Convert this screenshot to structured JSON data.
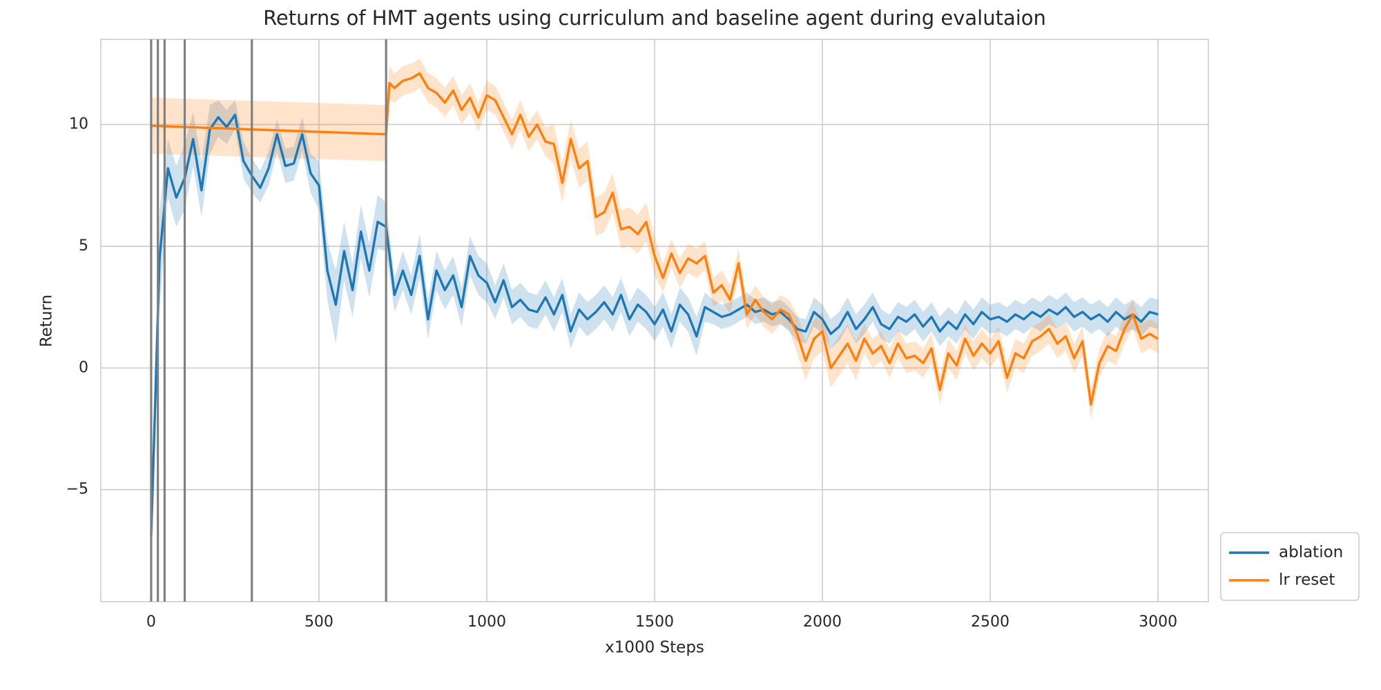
{
  "chart_data": {
    "type": "line",
    "title": "Returns of HMT agents using curriculum and baseline agent during evalutaion",
    "x_label": "x1000 Steps",
    "y_label": "Return",
    "xlim": [
      -150,
      3150
    ],
    "ylim": [
      -9.6,
      13.5
    ],
    "xticks": [
      0,
      500,
      1000,
      1500,
      2000,
      2500,
      3000
    ],
    "yticks": [
      {
        "value": -5,
        "label": "−5"
      },
      0,
      5,
      10
    ],
    "grid": true,
    "legend": "outside lower right",
    "vlines": [
      0,
      20,
      40,
      100,
      300,
      700
    ],
    "vline_color": "#808080",
    "series": [
      {
        "name": "ablation",
        "color": "#1f77b4",
        "x": [
          0,
          25,
          50,
          75,
          100,
          125,
          150,
          175,
          200,
          225,
          250,
          275,
          300,
          325,
          350,
          375,
          400,
          425,
          450,
          475,
          500,
          525,
          550,
          575,
          600,
          625,
          650,
          675,
          700,
          725,
          750,
          775,
          800,
          825,
          850,
          875,
          900,
          925,
          950,
          975,
          1000,
          1025,
          1050,
          1075,
          1100,
          1125,
          1150,
          1175,
          1200,
          1225,
          1250,
          1275,
          1300,
          1325,
          1350,
          1375,
          1400,
          1425,
          1450,
          1475,
          1500,
          1525,
          1550,
          1575,
          1600,
          1625,
          1650,
          1675,
          1700,
          1725,
          1750,
          1775,
          1800,
          1825,
          1850,
          1875,
          1900,
          1925,
          1950,
          1975,
          2000,
          2025,
          2050,
          2075,
          2100,
          2125,
          2150,
          2175,
          2200,
          2225,
          2250,
          2275,
          2300,
          2325,
          2350,
          2375,
          2400,
          2425,
          2450,
          2475,
          2500,
          2525,
          2550,
          2575,
          2600,
          2625,
          2650,
          2675,
          2700,
          2725,
          2750,
          2775,
          2800,
          2825,
          2850,
          2875,
          2900,
          2925,
          2950,
          2975,
          3000
        ],
        "values": [
          -6.9,
          4.5,
          8.2,
          7.0,
          7.8,
          9.4,
          7.3,
          9.8,
          10.3,
          9.9,
          10.4,
          8.5,
          7.9,
          7.4,
          8.2,
          9.6,
          8.3,
          8.4,
          9.6,
          8.0,
          7.5,
          4.0,
          2.6,
          4.8,
          3.2,
          5.6,
          4.0,
          6.0,
          5.8,
          3.0,
          4.0,
          3.0,
          4.6,
          2.0,
          4.0,
          3.2,
          3.8,
          2.5,
          4.6,
          3.8,
          3.5,
          2.7,
          3.6,
          2.5,
          2.8,
          2.4,
          2.3,
          2.9,
          2.2,
          3.0,
          1.5,
          2.4,
          2.0,
          2.3,
          2.7,
          2.2,
          3.0,
          2.0,
          2.6,
          2.3,
          1.8,
          2.4,
          1.5,
          2.6,
          2.2,
          1.3,
          2.5,
          2.3,
          2.1,
          2.2,
          2.4,
          2.6,
          2.3,
          2.4,
          2.2,
          2.3,
          2.0,
          1.6,
          1.5,
          2.3,
          2.0,
          1.4,
          1.7,
          2.3,
          1.6,
          2.0,
          2.5,
          1.8,
          1.6,
          2.1,
          1.9,
          2.2,
          1.7,
          2.1,
          1.5,
          1.9,
          1.6,
          2.2,
          1.8,
          2.3,
          2.0,
          2.1,
          1.9,
          2.2,
          2.0,
          2.3,
          2.1,
          2.4,
          2.2,
          2.5,
          2.1,
          2.3,
          2.0,
          2.2,
          1.9,
          2.3,
          2.0,
          2.2,
          1.9,
          2.3,
          2.2
        ],
        "lower": [
          -8.5,
          2.5,
          7,
          5.8,
          6.5,
          8.3,
          6.2,
          8.8,
          9.5,
          9.2,
          9.8,
          7.8,
          7.2,
          6.8,
          7.5,
          8.9,
          7.6,
          7.7,
          8.9,
          7.2,
          6.5,
          2.8,
          1,
          3.6,
          2.1,
          4.5,
          2.9,
          4.9,
          4.8,
          2.3,
          3.2,
          2.2,
          3.7,
          1.2,
          3.2,
          2.4,
          3,
          1.7,
          3.8,
          3,
          2.7,
          2,
          2.9,
          1.8,
          2.1,
          1.7,
          1.6,
          2.2,
          1.5,
          2.3,
          0.8,
          1.7,
          1.3,
          1.6,
          2,
          1.5,
          2.3,
          1.3,
          1.9,
          1.6,
          1.1,
          1.7,
          0.8,
          1.9,
          1.5,
          0.5,
          1.9,
          1.8,
          1.6,
          1.7,
          1.9,
          2.1,
          1.8,
          1.9,
          1.7,
          1.8,
          1.5,
          1.1,
          1,
          1.7,
          1.4,
          0.8,
          1.1,
          1.7,
          1,
          1.4,
          1.9,
          1.2,
          1,
          1.5,
          1.3,
          1.6,
          1.1,
          1.5,
          0.9,
          1.3,
          1,
          1.6,
          1.2,
          1.7,
          1.4,
          1.5,
          1.3,
          1.6,
          1.4,
          1.7,
          1.5,
          1.8,
          1.6,
          1.9,
          1.5,
          1.7,
          1.4,
          1.6,
          1.3,
          1.7,
          1.4,
          1.6,
          1.3,
          1.7,
          1.6
        ],
        "upper": [
          -5.5,
          6.5,
          9.4,
          8.3,
          9.2,
          10.5,
          8.5,
          10.8,
          11,
          10.6,
          11,
          9.3,
          8.6,
          8.1,
          8.9,
          10.2,
          9,
          9.1,
          10.3,
          8.8,
          8.5,
          5.2,
          4,
          6,
          4.3,
          6.7,
          5.1,
          7.1,
          6.8,
          3.7,
          4.8,
          3.8,
          5.5,
          2.8,
          4.8,
          4,
          4.6,
          3.3,
          5.4,
          4.6,
          4.3,
          3.4,
          4.3,
          3.2,
          3.5,
          3.1,
          3,
          3.6,
          2.9,
          3.7,
          2.2,
          3.1,
          2.7,
          3,
          3.4,
          2.9,
          3.7,
          2.7,
          3.3,
          3,
          2.5,
          3.1,
          2.2,
          3.3,
          2.9,
          2.1,
          3.1,
          2.8,
          2.6,
          2.7,
          2.9,
          3.1,
          2.8,
          2.9,
          2.7,
          2.8,
          2.5,
          2.1,
          2,
          2.9,
          2.6,
          2,
          2.3,
          2.9,
          2.2,
          2.6,
          3.1,
          2.4,
          2.2,
          2.7,
          2.5,
          2.8,
          2.3,
          2.7,
          2.1,
          2.5,
          2.2,
          2.8,
          2.4,
          2.9,
          2.6,
          2.7,
          2.5,
          2.8,
          2.6,
          2.9,
          2.7,
          3,
          2.8,
          3.1,
          2.7,
          2.9,
          2.6,
          2.8,
          2.5,
          2.9,
          2.6,
          2.8,
          2.5,
          2.9,
          2.8
        ]
      },
      {
        "name": "lr reset",
        "color": "#ff7f0e",
        "x": [
          0,
          700,
          710,
          725,
          750,
          775,
          800,
          825,
          850,
          875,
          900,
          925,
          950,
          975,
          1000,
          1025,
          1050,
          1075,
          1100,
          1125,
          1150,
          1175,
          1200,
          1225,
          1250,
          1275,
          1300,
          1325,
          1350,
          1375,
          1400,
          1425,
          1450,
          1475,
          1500,
          1525,
          1550,
          1575,
          1600,
          1625,
          1650,
          1675,
          1700,
          1725,
          1750,
          1775,
          1800,
          1825,
          1850,
          1875,
          1900,
          1925,
          1950,
          1975,
          2000,
          2025,
          2050,
          2075,
          2100,
          2125,
          2150,
          2175,
          2200,
          2225,
          2250,
          2275,
          2300,
          2325,
          2350,
          2375,
          2400,
          2425,
          2450,
          2475,
          2500,
          2525,
          2550,
          2575,
          2600,
          2625,
          2650,
          2675,
          2700,
          2725,
          2750,
          2775,
          2800,
          2825,
          2850,
          2875,
          2900,
          2925,
          2950,
          2975,
          3000
        ],
        "values": [
          9.95,
          9.6,
          11.7,
          11.5,
          11.8,
          11.9,
          12.1,
          11.5,
          11.3,
          10.9,
          11.4,
          10.6,
          11.1,
          10.3,
          11.2,
          11.0,
          10.3,
          9.6,
          10.4,
          9.5,
          10.0,
          9.3,
          9.2,
          7.6,
          9.4,
          8.2,
          8.5,
          6.2,
          6.4,
          7.2,
          5.7,
          5.8,
          5.5,
          6.0,
          4.6,
          3.7,
          4.7,
          3.9,
          4.5,
          4.3,
          4.6,
          3.1,
          3.4,
          2.8,
          4.3,
          2.2,
          2.8,
          2.3,
          2.0,
          2.4,
          2.2,
          1.4,
          0.3,
          1.2,
          1.5,
          0.0,
          0.5,
          1.0,
          0.3,
          1.2,
          0.6,
          0.9,
          0.2,
          1.0,
          0.4,
          0.5,
          0.2,
          0.8,
          -0.9,
          0.6,
          0.1,
          1.2,
          0.5,
          1.0,
          0.6,
          1.1,
          -0.4,
          0.6,
          0.4,
          1.1,
          1.3,
          1.6,
          1.0,
          1.3,
          0.4,
          1.1,
          -1.5,
          0.2,
          0.9,
          0.7,
          1.6,
          2.2,
          1.2,
          1.4,
          1.2
        ],
        "lower": [
          8.8,
          8.5,
          11.0,
          10.9,
          11.2,
          11.3,
          11.5,
          10.9,
          10.7,
          10.3,
          10.8,
          10.0,
          10.5,
          9.7,
          10.6,
          10.4,
          9.7,
          9.0,
          9.8,
          8.9,
          9.4,
          8.7,
          8.4,
          6.8,
          8.6,
          7.4,
          7.7,
          5.4,
          5.6,
          6.4,
          4.9,
          5.0,
          4.7,
          5.2,
          3.8,
          3.1,
          4.1,
          3.3,
          3.9,
          3.7,
          4.0,
          2.5,
          2.8,
          2.2,
          3.7,
          1.6,
          2.2,
          1.7,
          1.4,
          1.8,
          1.6,
          0.6,
          -0.5,
          0.4,
          0.7,
          -0.8,
          -0.3,
          0.2,
          -0.5,
          0.6,
          0.0,
          0.3,
          -0.4,
          0.4,
          -0.2,
          -0.1,
          -0.4,
          0.2,
          -1.5,
          0.0,
          -0.5,
          0.6,
          -0.1,
          0.4,
          0.0,
          0.5,
          -1.0,
          0.0,
          -0.2,
          0.5,
          0.7,
          1.0,
          0.4,
          0.7,
          -0.2,
          0.5,
          -2.1,
          -0.4,
          0.3,
          0.1,
          1.0,
          1.6,
          0.6,
          0.8,
          0.6
        ],
        "upper": [
          11.1,
          10.8,
          12.4,
          12.1,
          12.4,
          12.5,
          12.7,
          12.1,
          11.9,
          11.5,
          12.0,
          11.2,
          11.7,
          10.9,
          11.8,
          11.6,
          10.9,
          10.2,
          11.0,
          10.1,
          10.6,
          9.9,
          10.0,
          8.4,
          10.2,
          9.0,
          9.3,
          7.0,
          7.2,
          8.0,
          6.5,
          6.6,
          6.3,
          6.8,
          5.4,
          4.3,
          5.3,
          4.5,
          5.1,
          4.9,
          5.2,
          3.7,
          4.0,
          3.4,
          4.9,
          2.8,
          3.4,
          2.9,
          2.6,
          3.0,
          2.8,
          2.2,
          1.1,
          2.0,
          2.3,
          0.8,
          1.3,
          1.8,
          1.1,
          1.8,
          1.2,
          1.5,
          0.8,
          1.6,
          1.0,
          1.1,
          0.8,
          1.4,
          -0.3,
          1.2,
          0.7,
          1.8,
          1.1,
          1.6,
          1.2,
          1.7,
          0.2,
          1.2,
          1.0,
          1.7,
          1.9,
          2.2,
          1.6,
          1.9,
          1.0,
          1.7,
          -0.9,
          0.8,
          1.5,
          1.3,
          2.2,
          2.8,
          1.8,
          2.0,
          1.8
        ]
      }
    ]
  }
}
